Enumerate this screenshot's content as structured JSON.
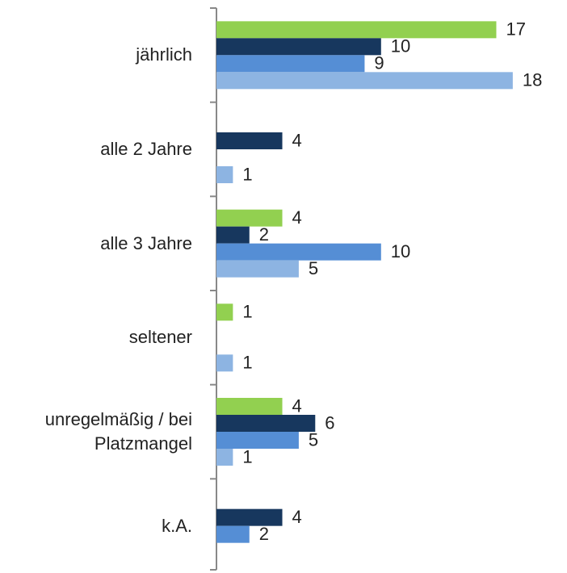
{
  "chart_data": {
    "type": "hbar",
    "categories": [
      "jährlich",
      "alle 2 Jahre",
      "alle 3 Jahre",
      "seltener",
      "unregelmäßig / bei Platzmangel",
      "k.A."
    ],
    "series": [
      {
        "color": "#92d050",
        "values": [
          17,
          null,
          4,
          1,
          4,
          null
        ]
      },
      {
        "color": "#17375e",
        "values": [
          10,
          4,
          2,
          null,
          6,
          4
        ]
      },
      {
        "color": "#558ed5",
        "values": [
          9,
          null,
          10,
          null,
          5,
          2
        ]
      },
      {
        "color": "#8db4e2",
        "values": [
          18,
          1,
          5,
          1,
          1,
          null
        ]
      }
    ],
    "xlim": [
      0,
      21
    ]
  }
}
